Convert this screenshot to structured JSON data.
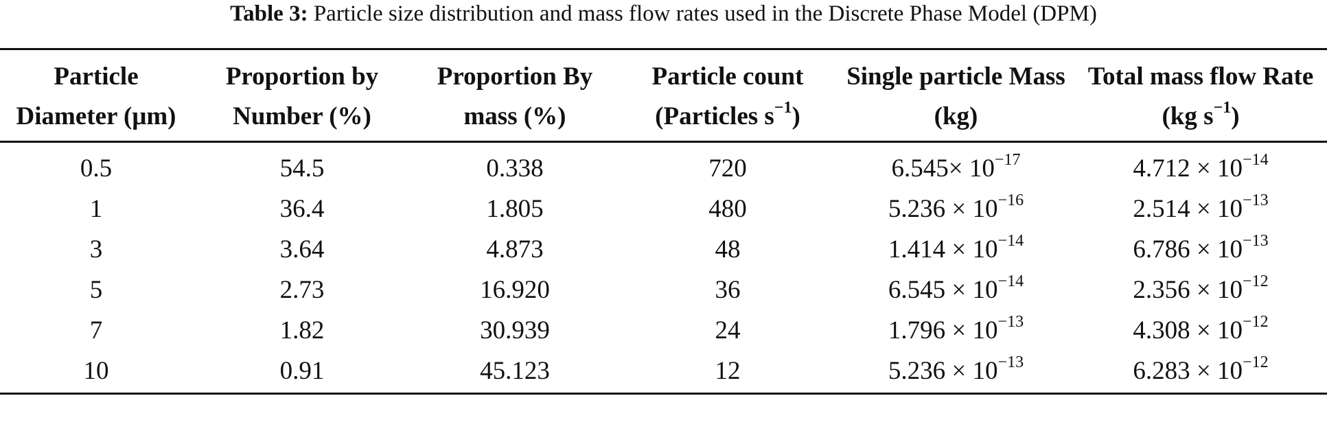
{
  "caption": {
    "label": "Table 3:",
    "text": "Particle size distribution and mass flow rates used in the Discrete Phase Model (DPM)"
  },
  "headers": [
    {
      "pre": "Particle Diameter (μm)",
      "sup": "",
      "post": ""
    },
    {
      "pre": "Proportion by Number (%)",
      "sup": "",
      "post": ""
    },
    {
      "pre": "Proportion By mass (%)",
      "sup": "",
      "post": ""
    },
    {
      "pre": "Particle count (Particles s",
      "sup": "−1",
      "post": ")"
    },
    {
      "pre": "Single particle Mass (kg)",
      "sup": "",
      "post": ""
    },
    {
      "pre": "Total mass flow Rate (kg s",
      "sup": "−1",
      "post": ")"
    }
  ],
  "rows": [
    {
      "diameter": "0.5",
      "num": "54.5",
      "mass": "0.338",
      "count": "720",
      "single_base": "6.545× 10",
      "single_exp": "−17",
      "total_base": "4.712 × 10",
      "total_exp": "−14"
    },
    {
      "diameter": "1",
      "num": "36.4",
      "mass": "1.805",
      "count": "480",
      "single_base": "5.236 × 10",
      "single_exp": "−16",
      "total_base": "2.514 × 10",
      "total_exp": "−13"
    },
    {
      "diameter": "3",
      "num": "3.64",
      "mass": "4.873",
      "count": "48",
      "single_base": "1.414 × 10",
      "single_exp": "−14",
      "total_base": "6.786 × 10",
      "total_exp": "−13"
    },
    {
      "diameter": "5",
      "num": "2.73",
      "mass": "16.920",
      "count": "36",
      "single_base": "6.545 × 10",
      "single_exp": "−14",
      "total_base": "2.356 × 10",
      "total_exp": "−12"
    },
    {
      "diameter": "7",
      "num": "1.82",
      "mass": "30.939",
      "count": "24",
      "single_base": "1.796 × 10",
      "single_exp": "−13",
      "total_base": "4.308 × 10",
      "total_exp": "−12"
    },
    {
      "diameter": "10",
      "num": "0.91",
      "mass": "45.123",
      "count": "12",
      "single_base": "5.236 × 10",
      "single_exp": "−13",
      "total_base": "6.283 × 10",
      "total_exp": "−12"
    }
  ]
}
